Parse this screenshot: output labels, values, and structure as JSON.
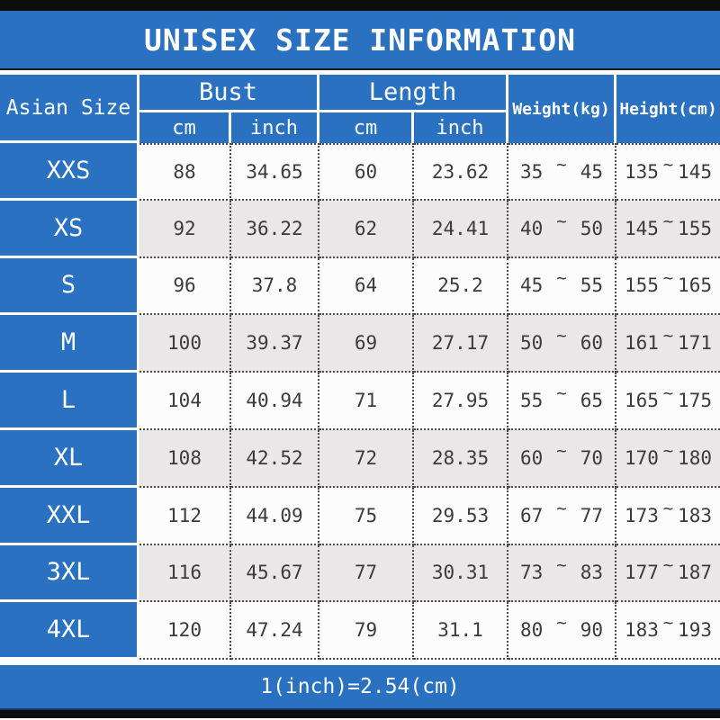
{
  "title": "UNISEX SIZE INFORMATION",
  "footer_note": "1(inch)=2.54(cm)",
  "separator": "~",
  "colors": {
    "blue": "#2a71c1",
    "row_white": "#fcfcfc",
    "row_gray": "#e9e7e8",
    "bar_black": "#0d0d0d",
    "data_text": "#3b3b3b",
    "header_text": "#ffffff"
  },
  "header": {
    "corner": "Asian Size",
    "bust": "Bust",
    "length": "Length",
    "cm": "cm",
    "inch": "inch",
    "weight": "Weight(kg)",
    "height": "Height(cm)"
  },
  "rows": [
    {
      "size": "XXS",
      "bust_cm": "88",
      "bust_inch": "34.65",
      "length_cm": "60",
      "length_inch": "23.62",
      "weight_min": "35",
      "weight_max": "45",
      "height_min": "135",
      "height_max": "145"
    },
    {
      "size": "XS",
      "bust_cm": "92",
      "bust_inch": "36.22",
      "length_cm": "62",
      "length_inch": "24.41",
      "weight_min": "40",
      "weight_max": "50",
      "height_min": "145",
      "height_max": "155"
    },
    {
      "size": "S",
      "bust_cm": "96",
      "bust_inch": "37.8",
      "length_cm": "64",
      "length_inch": "25.2",
      "weight_min": "45",
      "weight_max": "55",
      "height_min": "155",
      "height_max": "165"
    },
    {
      "size": "M",
      "bust_cm": "100",
      "bust_inch": "39.37",
      "length_cm": "69",
      "length_inch": "27.17",
      "weight_min": "50",
      "weight_max": "60",
      "height_min": "161",
      "height_max": "171"
    },
    {
      "size": "L",
      "bust_cm": "104",
      "bust_inch": "40.94",
      "length_cm": "71",
      "length_inch": "27.95",
      "weight_min": "55",
      "weight_max": "65",
      "height_min": "165",
      "height_max": "175"
    },
    {
      "size": "XL",
      "bust_cm": "108",
      "bust_inch": "42.52",
      "length_cm": "72",
      "length_inch": "28.35",
      "weight_min": "60",
      "weight_max": "70",
      "height_min": "170",
      "height_max": "180"
    },
    {
      "size": "XXL",
      "bust_cm": "112",
      "bust_inch": "44.09",
      "length_cm": "75",
      "length_inch": "29.53",
      "weight_min": "67",
      "weight_max": "77",
      "height_min": "173",
      "height_max": "183"
    },
    {
      "size": "3XL",
      "bust_cm": "116",
      "bust_inch": "45.67",
      "length_cm": "77",
      "length_inch": "30.31",
      "weight_min": "73",
      "weight_max": "83",
      "height_min": "177",
      "height_max": "187"
    },
    {
      "size": "4XL",
      "bust_cm": "120",
      "bust_inch": "47.24",
      "length_cm": "79",
      "length_inch": "31.1",
      "weight_min": "80",
      "weight_max": "90",
      "height_min": "183",
      "height_max": "193"
    }
  ],
  "chart_data": {
    "type": "table",
    "title": "UNISEX SIZE INFORMATION",
    "columns": [
      "Asian Size",
      "Bust cm",
      "Bust inch",
      "Length cm",
      "Length inch",
      "Weight(kg)",
      "Height(cm)"
    ],
    "rows": [
      [
        "XXS",
        88,
        34.65,
        60,
        23.62,
        "35~45",
        "135~145"
      ],
      [
        "XS",
        92,
        36.22,
        62,
        24.41,
        "40~50",
        "145~155"
      ],
      [
        "S",
        96,
        37.8,
        64,
        25.2,
        "45~55",
        "155~165"
      ],
      [
        "M",
        100,
        39.37,
        69,
        27.17,
        "50~60",
        "161~171"
      ],
      [
        "L",
        104,
        40.94,
        71,
        27.95,
        "55~65",
        "165~175"
      ],
      [
        "XL",
        108,
        42.52,
        72,
        28.35,
        "60~70",
        "170~180"
      ],
      [
        "XXL",
        112,
        44.09,
        75,
        29.53,
        "67~77",
        "173~183"
      ],
      [
        "3XL",
        116,
        45.67,
        77,
        30.31,
        "73~83",
        "177~187"
      ],
      [
        "4XL",
        120,
        47.24,
        79,
        31.1,
        "80~90",
        "183~193"
      ]
    ],
    "note": "1(inch)=2.54(cm)"
  }
}
